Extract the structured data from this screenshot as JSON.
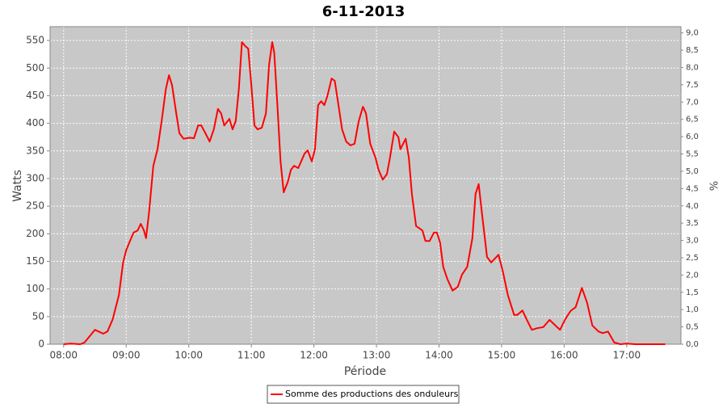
{
  "chart_data": {
    "type": "line",
    "title": "6-11-2013",
    "xlabel": "Période",
    "ylabel": "Watts",
    "y2label": "%",
    "x": [
      "08:00",
      "08:07",
      "08:16",
      "08:20",
      "08:30",
      "08:38",
      "08:42",
      "08:47",
      "08:53",
      "08:57",
      "09:00",
      "09:03",
      "09:07",
      "09:11",
      "09:14",
      "09:17",
      "09:19",
      "09:22",
      "09:26",
      "09:30",
      "09:34",
      "09:38",
      "09:41",
      "09:44",
      "09:48",
      "09:51",
      "09:55",
      "10:01",
      "10:05",
      "10:09",
      "10:12",
      "10:16",
      "10:20",
      "10:24",
      "10:28",
      "10:31",
      "10:34",
      "10:39",
      "10:42",
      "10:45",
      "10:48",
      "10:51",
      "10:54",
      "10:57",
      "11:00",
      "11:03",
      "11:06",
      "11:10",
      "11:14",
      "11:17",
      "11:20",
      "11:22",
      "11:25",
      "11:28",
      "11:31",
      "11:35",
      "11:38",
      "11:41",
      "11:45",
      "11:51",
      "11:54",
      "11:58",
      "12:01",
      "12:04",
      "12:07",
      "12:10",
      "12:13",
      "12:17",
      "12:20",
      "12:23",
      "12:27",
      "12:31",
      "12:35",
      "12:39",
      "12:43",
      "12:47",
      "12:50",
      "12:54",
      "12:59",
      "13:02",
      "13:06",
      "13:10",
      "13:13",
      "13:17",
      "13:21",
      "13:23",
      "13:28",
      "13:31",
      "13:34",
      "13:38",
      "13:44",
      "13:47",
      "13:51",
      "13:55",
      "13:58",
      "14:01",
      "14:04",
      "14:08",
      "14:13",
      "14:18",
      "14:22",
      "14:27",
      "14:32",
      "14:35",
      "14:38",
      "14:41",
      "14:46",
      "14:50",
      "14:57",
      "15:01",
      "15:06",
      "15:12",
      "15:15",
      "15:20",
      "15:24",
      "15:29",
      "15:34",
      "15:40",
      "15:46",
      "15:51",
      "15:56",
      "16:01",
      "16:06",
      "16:11",
      "16:17",
      "16:22",
      "16:27",
      "16:33",
      "16:37",
      "16:42",
      "16:48",
      "16:54",
      "17:00",
      "17:08",
      "17:37"
    ],
    "series": [
      {
        "name": "Somme des productions des onduleurs",
        "color": "#ff0000",
        "values": [
          0,
          1,
          0,
          3,
          26,
          19,
          23,
          45,
          89,
          148,
          170,
          184,
          202,
          206,
          218,
          206,
          192,
          240,
          323,
          353,
          404,
          462,
          487,
          469,
          418,
          382,
          372,
          374,
          373,
          396,
          396,
          382,
          367,
          389,
          426,
          418,
          396,
          408,
          389,
          404,
          462,
          547,
          540,
          535,
          470,
          396,
          389,
          392,
          418,
          506,
          547,
          528,
          433,
          331,
          275,
          294,
          316,
          323,
          319,
          345,
          351,
          331,
          353,
          433,
          440,
          433,
          450,
          481,
          477,
          440,
          389,
          367,
          360,
          363,
          404,
          430,
          418,
          363,
          338,
          316,
          298,
          308,
          338,
          385,
          375,
          353,
          372,
          338,
          272,
          214,
          206,
          187,
          187,
          202,
          202,
          184,
          140,
          118,
          97,
          104,
          126,
          140,
          192,
          272,
          290,
          240,
          158,
          148,
          162,
          133,
          89,
          53,
          53,
          61,
          45,
          26,
          29,
          31,
          44,
          35,
          26,
          45,
          60,
          67,
          102,
          75,
          34,
          23,
          20,
          23,
          3,
          0,
          1,
          0,
          0
        ]
      }
    ],
    "xlim": [
      "07:47",
      "17:52"
    ],
    "xticks": [
      "08:00",
      "09:00",
      "10:00",
      "11:00",
      "12:00",
      "13:00",
      "14:00",
      "15:00",
      "16:00",
      "17:00"
    ],
    "ylim": [
      0,
      575
    ],
    "yticks": [
      0,
      50,
      100,
      150,
      200,
      250,
      300,
      350,
      400,
      450,
      500,
      550
    ],
    "y2lim": [
      0,
      9.18
    ],
    "y2ticks": [
      {
        "value": 0,
        "label": "0,0"
      },
      {
        "value": 0.5,
        "label": "0,5"
      },
      {
        "value": 1,
        "label": "1,0"
      },
      {
        "value": 1.5,
        "label": "1,5"
      },
      {
        "value": 2,
        "label": "2,0"
      },
      {
        "value": 2.5,
        "label": "2,5"
      },
      {
        "value": 3,
        "label": "3,0"
      },
      {
        "value": 3.5,
        "label": "3,5"
      },
      {
        "value": 4,
        "label": "4,0"
      },
      {
        "value": 4.5,
        "label": "4,5"
      },
      {
        "value": 5,
        "label": "5,0"
      },
      {
        "value": 5.5,
        "label": "5,5"
      },
      {
        "value": 6,
        "label": "6,0"
      },
      {
        "value": 6.5,
        "label": "6,5"
      },
      {
        "value": 7,
        "label": "7,0"
      },
      {
        "value": 7.5,
        "label": "7,5"
      },
      {
        "value": 8,
        "label": "8,0"
      },
      {
        "value": 8.5,
        "label": "8,5"
      },
      {
        "value": 9,
        "label": "9,0"
      }
    ],
    "grid": true,
    "legend": "bottom"
  }
}
